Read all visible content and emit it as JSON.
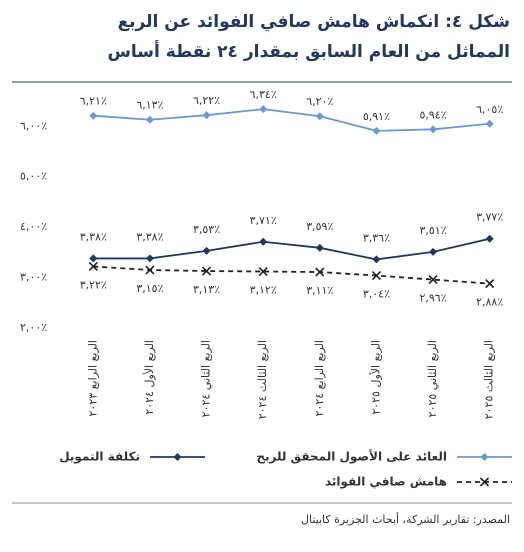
{
  "chart_data": {
    "type": "line",
    "title": [
      "شكل ٤: انكماش هامش صافي الفوائد عن الربع",
      "المماثل من العام السابق بمقدار ٢٤ نقطة أساس"
    ],
    "source": "المصدر: تقارير الشركة، أبحاث الجزيرة كابيتال",
    "categories": [
      "الربع الرابع ٢٠٢٣",
      "الربع الأول ٢٠٢٤",
      "الربع الثاني ٢٠٢٤",
      "الربع الثالث ٢٠٢٤",
      "الربع الرابع ٢٠٢٤",
      "الربع الأول ٢٠٢٥",
      "الربع الثاني ٢٠٢٥",
      "الربع الثالث ٢٠٢٥"
    ],
    "ylim": [
      2,
      6.7
    ],
    "yticks": [
      {
        "value": 2,
        "label": "٢,٠٠٪"
      },
      {
        "value": 3,
        "label": "٣,٠٠٪"
      },
      {
        "value": 4,
        "label": "٤,٠٠٪"
      },
      {
        "value": 5,
        "label": "٥,٠٠٪"
      },
      {
        "value": 6,
        "label": "٦,٠٠٪"
      }
    ],
    "series": [
      {
        "name": "العائد على الأصول المحقق للربح",
        "color": "#6a9ad6",
        "marker": "diamond",
        "dash": false,
        "label_position": "above",
        "values": [
          6.21,
          6.13,
          6.22,
          6.34,
          6.2,
          5.91,
          5.94,
          6.05
        ],
        "value_labels": [
          "٦,٢١٪",
          "٦,١٣٪",
          "٦,٢٢٪",
          "٦,٣٤٪",
          "٦,٢٠٪",
          "٥,٩١٪",
          "٥,٩٤٪",
          "٦,٠٥٪"
        ]
      },
      {
        "name": "تكلفة التمويل",
        "color": "#1f3864",
        "marker": "diamond",
        "dash": false,
        "label_position": "above",
        "values": [
          3.38,
          3.38,
          3.53,
          3.71,
          3.59,
          3.36,
          3.51,
          3.77
        ],
        "value_labels": [
          "٣,٣٨٪",
          "٣,٣٨٪",
          "٣,٥٣٪",
          "٣,٧١٪",
          "٣,٥٩٪",
          "٣,٣٦٪",
          "٣,٥١٪",
          "٣,٧٧٪"
        ]
      },
      {
        "name": "هامش صافي الفوائد",
        "color": "#222222",
        "marker": "x",
        "dash": true,
        "label_position": "below",
        "values": [
          3.22,
          3.15,
          3.13,
          3.12,
          3.11,
          3.04,
          2.96,
          2.88
        ],
        "value_labels": [
          "٣,٢٢٪",
          "٣,١٥٪",
          "٣,١٣٪",
          "٣,١٢٪",
          "٣,١١٪",
          "٣,٠٤٪",
          "٢,٩٦٪",
          "٢,٨٨٪"
        ]
      }
    ]
  }
}
